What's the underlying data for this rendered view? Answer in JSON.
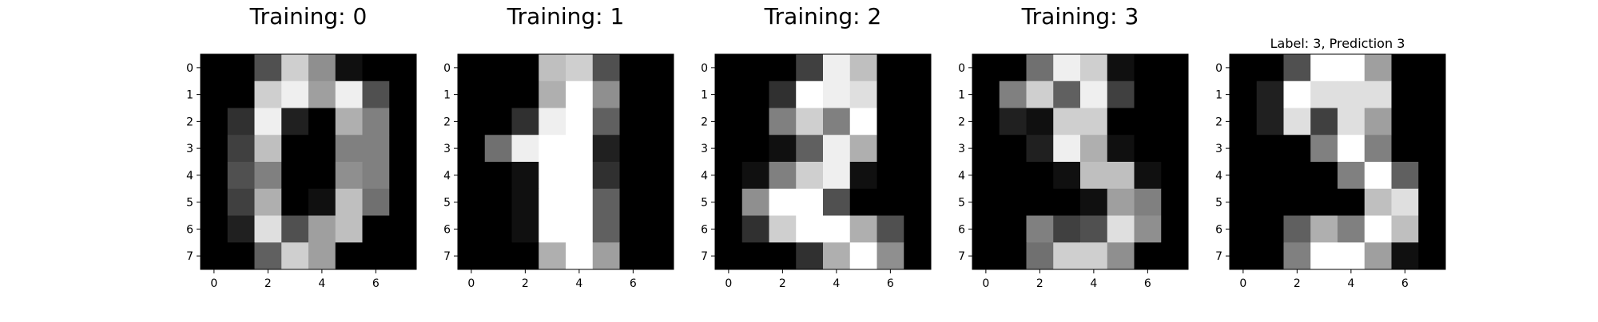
{
  "chart_data": [
    {
      "type": "heatmap",
      "title": "Training: 0",
      "colormap": "gray",
      "vmin": 0,
      "vmax": 16,
      "xticks": [
        "0",
        "2",
        "4",
        "6"
      ],
      "yticks": [
        "0",
        "1",
        "2",
        "3",
        "4",
        "5",
        "6",
        "7"
      ],
      "values": [
        [
          0,
          0,
          5,
          13,
          9,
          1,
          0,
          0
        ],
        [
          0,
          0,
          13,
          15,
          10,
          15,
          5,
          0
        ],
        [
          0,
          3,
          15,
          2,
          0,
          11,
          8,
          0
        ],
        [
          0,
          4,
          12,
          0,
          0,
          8,
          8,
          0
        ],
        [
          0,
          5,
          8,
          0,
          0,
          9,
          8,
          0
        ],
        [
          0,
          4,
          11,
          0,
          1,
          12,
          7,
          0
        ],
        [
          0,
          2,
          14,
          5,
          10,
          12,
          0,
          0
        ],
        [
          0,
          0,
          6,
          13,
          10,
          0,
          0,
          0
        ]
      ]
    },
    {
      "type": "heatmap",
      "title": "Training: 1",
      "colormap": "gray",
      "vmin": 0,
      "vmax": 16,
      "xticks": [
        "0",
        "2",
        "4",
        "6"
      ],
      "yticks": [
        "0",
        "1",
        "2",
        "3",
        "4",
        "5",
        "6",
        "7"
      ],
      "values": [
        [
          0,
          0,
          0,
          12,
          13,
          5,
          0,
          0
        ],
        [
          0,
          0,
          0,
          11,
          16,
          9,
          0,
          0
        ],
        [
          0,
          0,
          3,
          15,
          16,
          6,
          0,
          0
        ],
        [
          0,
          7,
          15,
          16,
          16,
          2,
          0,
          0
        ],
        [
          0,
          0,
          1,
          16,
          16,
          3,
          0,
          0
        ],
        [
          0,
          0,
          1,
          16,
          16,
          6,
          0,
          0
        ],
        [
          0,
          0,
          1,
          16,
          16,
          6,
          0,
          0
        ],
        [
          0,
          0,
          0,
          11,
          16,
          10,
          0,
          0
        ]
      ]
    },
    {
      "type": "heatmap",
      "title": "Training: 2",
      "colormap": "gray",
      "vmin": 0,
      "vmax": 16,
      "xticks": [
        "0",
        "2",
        "4",
        "6"
      ],
      "yticks": [
        "0",
        "1",
        "2",
        "3",
        "4",
        "5",
        "6",
        "7"
      ],
      "values": [
        [
          0,
          0,
          0,
          4,
          15,
          12,
          0,
          0
        ],
        [
          0,
          0,
          3,
          16,
          15,
          14,
          0,
          0
        ],
        [
          0,
          0,
          8,
          13,
          8,
          16,
          0,
          0
        ],
        [
          0,
          0,
          1,
          6,
          15,
          11,
          0,
          0
        ],
        [
          0,
          1,
          8,
          13,
          15,
          1,
          0,
          0
        ],
        [
          0,
          9,
          16,
          16,
          5,
          0,
          0,
          0
        ],
        [
          0,
          3,
          13,
          16,
          16,
          11,
          5,
          0
        ],
        [
          0,
          0,
          0,
          3,
          11,
          16,
          9,
          0
        ]
      ]
    },
    {
      "type": "heatmap",
      "title": "Training: 3",
      "colormap": "gray",
      "vmin": 0,
      "vmax": 16,
      "xticks": [
        "0",
        "2",
        "4",
        "6"
      ],
      "yticks": [
        "0",
        "1",
        "2",
        "3",
        "4",
        "5",
        "6",
        "7"
      ],
      "values": [
        [
          0,
          0,
          7,
          15,
          13,
          1,
          0,
          0
        ],
        [
          0,
          8,
          13,
          6,
          15,
          4,
          0,
          0
        ],
        [
          0,
          2,
          1,
          13,
          13,
          0,
          0,
          0
        ],
        [
          0,
          0,
          2,
          15,
          11,
          1,
          0,
          0
        ],
        [
          0,
          0,
          0,
          1,
          12,
          12,
          1,
          0
        ],
        [
          0,
          0,
          0,
          0,
          1,
          10,
          8,
          0
        ],
        [
          0,
          0,
          8,
          4,
          5,
          14,
          9,
          0
        ],
        [
          0,
          0,
          7,
          13,
          13,
          9,
          0,
          0
        ]
      ]
    },
    {
      "type": "heatmap",
      "title": "Label: 3, Prediction 3",
      "colormap": "gray",
      "vmin": 0,
      "vmax": 16,
      "xticks": [
        "0",
        "2",
        "4",
        "6"
      ],
      "yticks": [
        "0",
        "1",
        "2",
        "3",
        "4",
        "5",
        "6",
        "7"
      ],
      "values": [
        [
          0,
          0,
          5,
          16,
          16,
          10,
          0,
          0
        ],
        [
          0,
          2,
          16,
          14,
          14,
          14,
          0,
          0
        ],
        [
          0,
          2,
          14,
          4,
          14,
          10,
          0,
          0
        ],
        [
          0,
          0,
          0,
          8,
          16,
          8,
          0,
          0
        ],
        [
          0,
          0,
          0,
          0,
          8,
          16,
          6,
          0
        ],
        [
          0,
          0,
          0,
          0,
          0,
          12,
          14,
          0
        ],
        [
          0,
          0,
          6,
          11,
          8,
          16,
          12,
          0
        ],
        [
          0,
          0,
          8,
          16,
          16,
          10,
          1,
          0
        ]
      ]
    }
  ]
}
